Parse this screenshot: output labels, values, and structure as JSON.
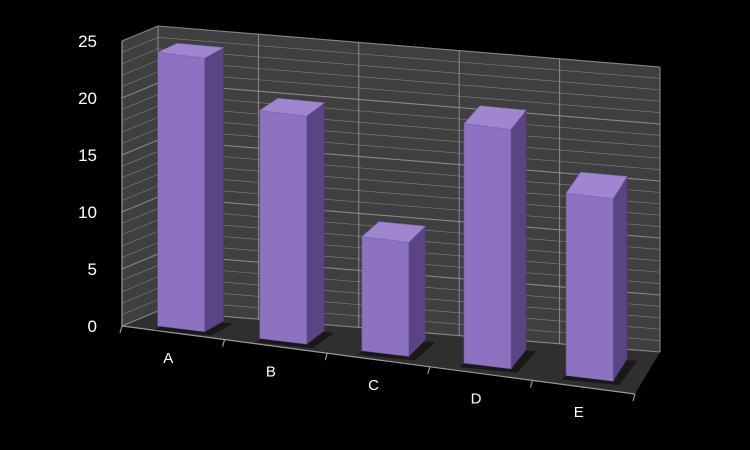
{
  "chart_data": {
    "type": "bar",
    "style": "3d-column",
    "categories": [
      "A",
      "B",
      "C",
      "D",
      "E"
    ],
    "values": [
      24,
      20,
      10,
      21,
      16
    ],
    "ylim": [
      0,
      25
    ],
    "yticks": [
      "0",
      "5",
      "10",
      "15",
      "20",
      "25"
    ],
    "grid": true,
    "legend": "none",
    "colors": {
      "background": "#000000",
      "wall": "#3f3f3f",
      "floor": "#2f2f2f",
      "grid": "#8c8c8c",
      "bar_front": "#8e72c2",
      "bar_side": "#5a4483",
      "bar_top": "#9f86cf"
    }
  }
}
